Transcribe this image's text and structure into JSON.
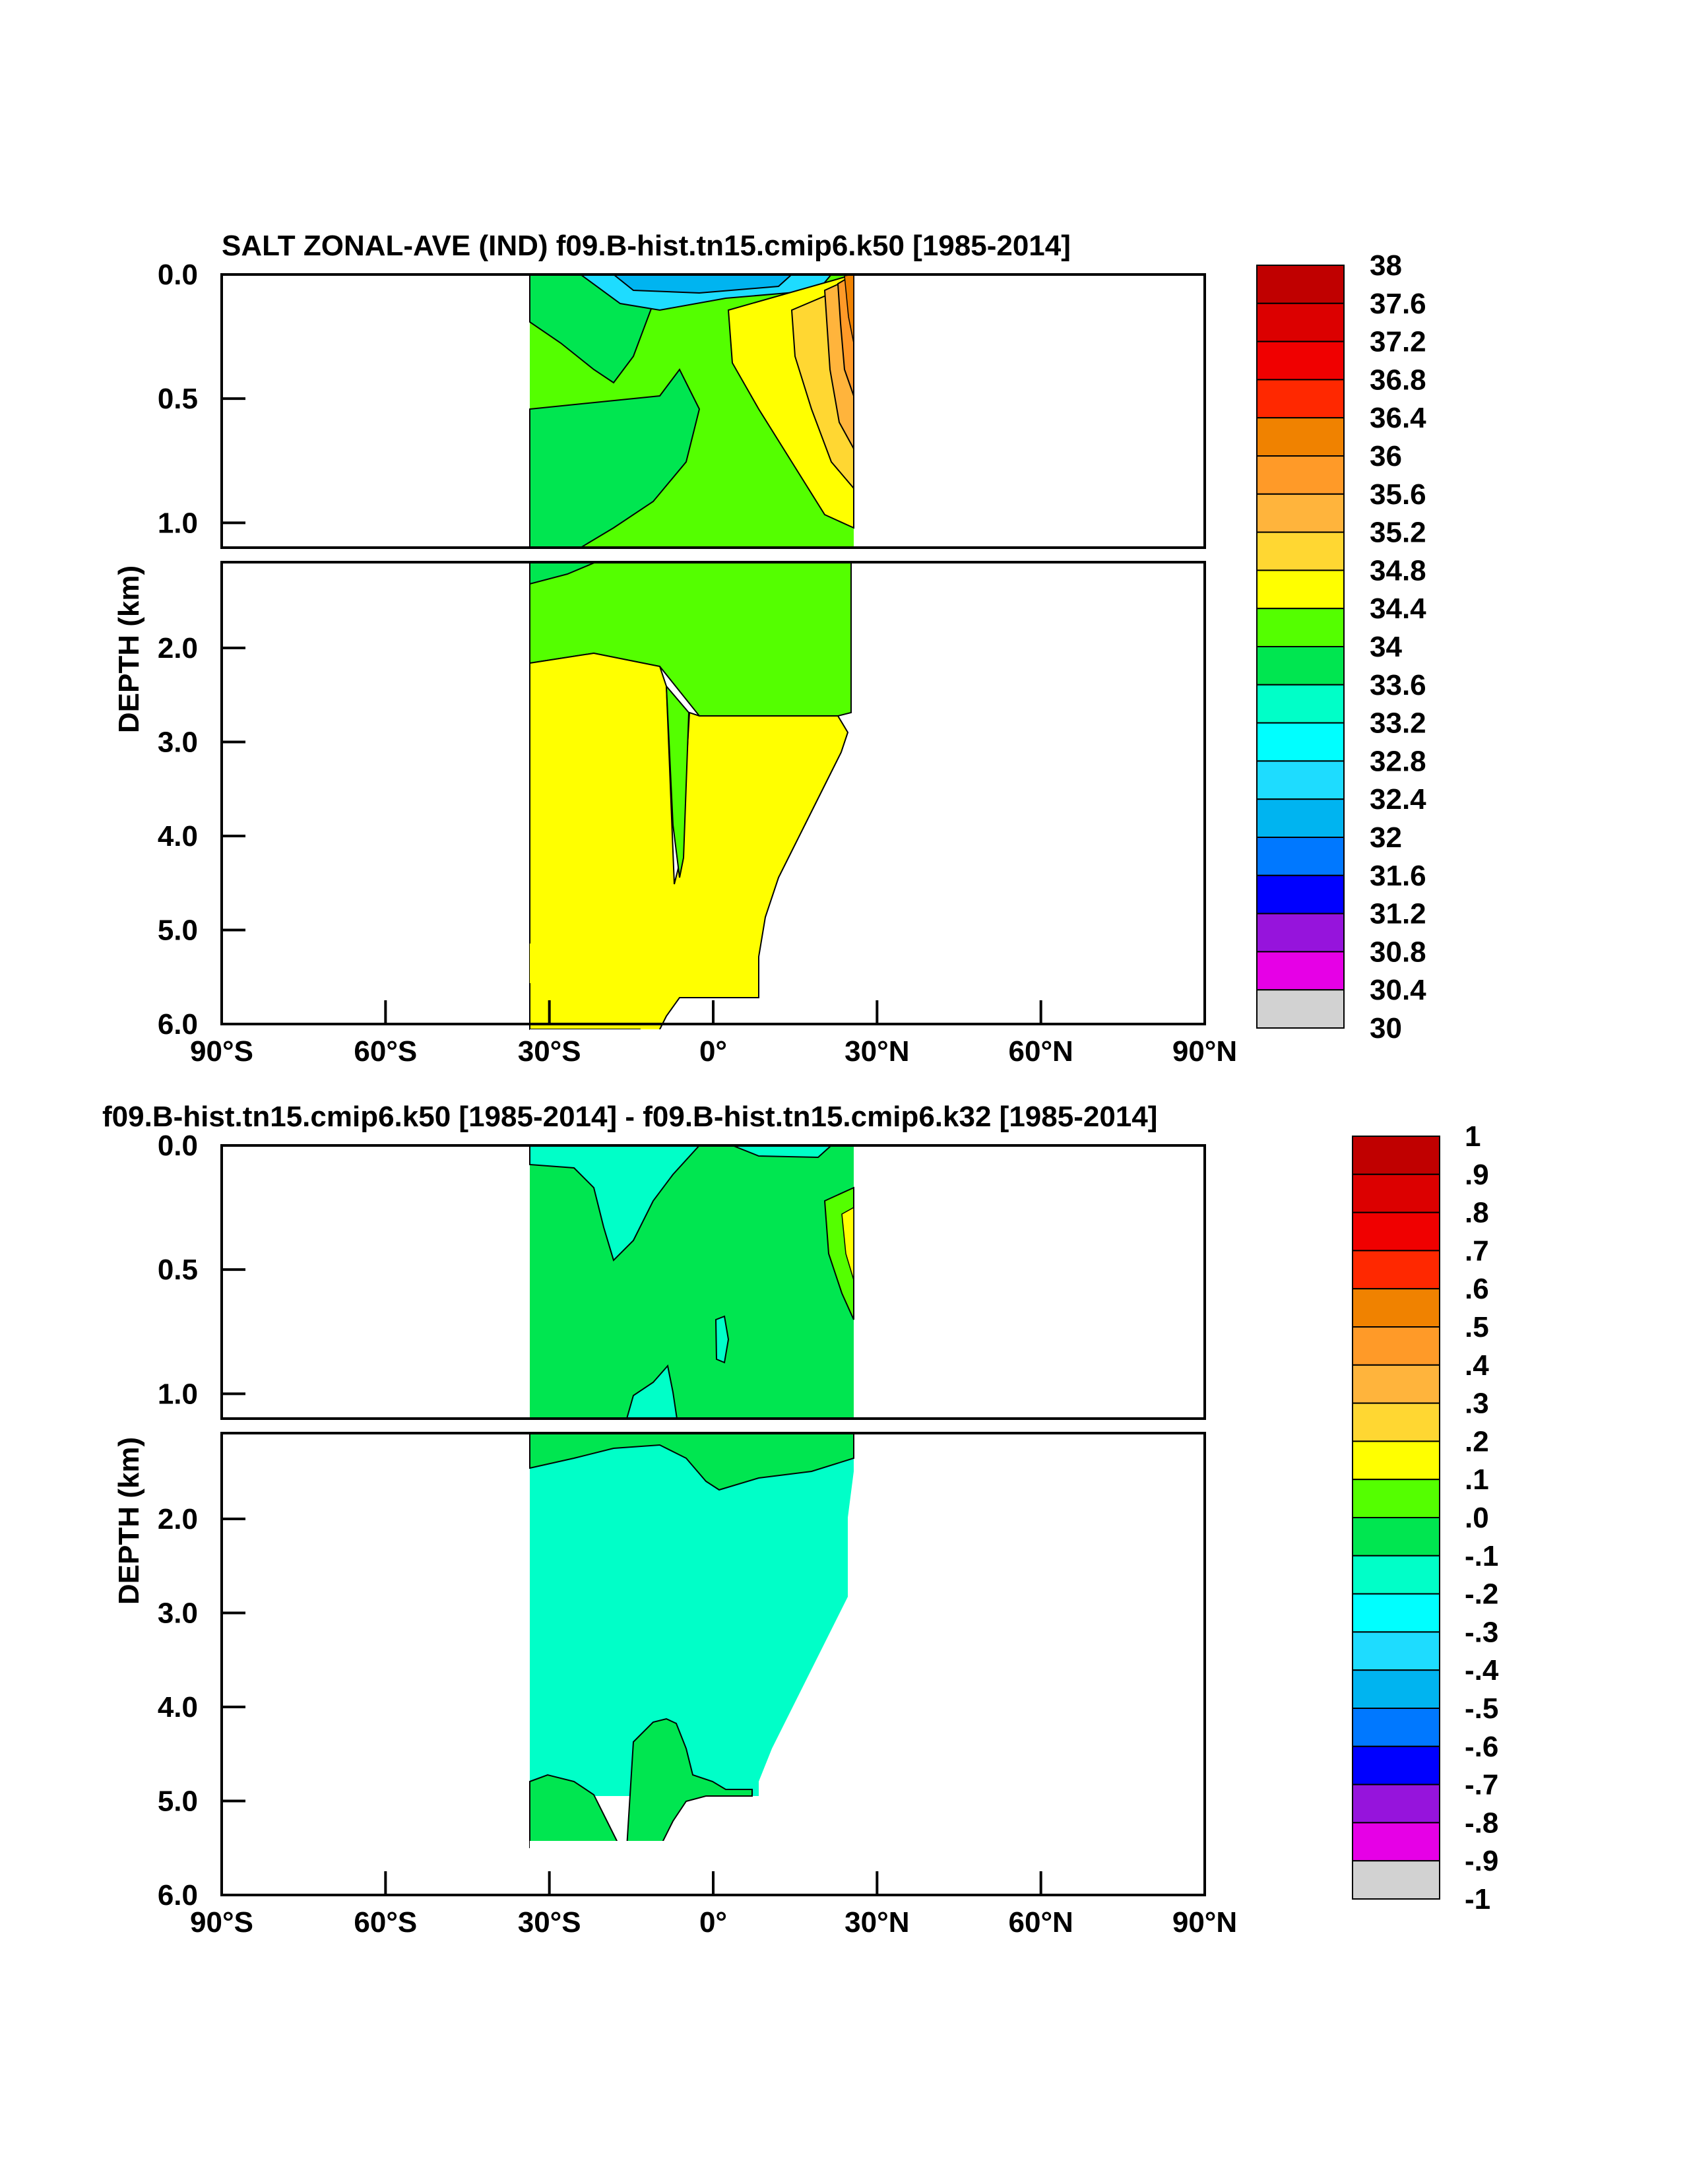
{
  "chart_data": [
    {
      "type": "heatmap",
      "title": "SALT ZONAL-AVE (IND) f09.B-hist.tn15.cmip6.k50 [1985-2014]",
      "ylabel": "DEPTH (km)",
      "xlabel": "",
      "x_ticks": [
        "90°S",
        "60°S",
        "30°S",
        "0°",
        "30°N",
        "60°N",
        "90°N"
      ],
      "y_ticks_upper": [
        "0.0",
        "0.5",
        "1.0"
      ],
      "y_ticks_lower": [
        "2.0",
        "3.0",
        "4.0",
        "5.0",
        "6.0"
      ],
      "xlim": [
        -90,
        90
      ],
      "ylim_km": [
        6.0,
        0.0
      ],
      "colorbar": {
        "labels": [
          "38",
          "37.6",
          "37.2",
          "36.8",
          "36.4",
          "36",
          "35.6",
          "35.2",
          "34.8",
          "34.4",
          "34",
          "33.6",
          "33.2",
          "32.8",
          "32.4",
          "32",
          "31.6",
          "31.2",
          "30.8",
          "30.4",
          "30"
        ],
        "colors": [
          "#c00000",
          "#dc0000",
          "#f00000",
          "#ff2800",
          "#f08200",
          "#ff9a28",
          "#ffb43c",
          "#ffd732",
          "#ffff00",
          "#54ff00",
          "#00e650",
          "#00ffc8",
          "#00ffff",
          "#1edcff",
          "#00b4f0",
          "#0078ff",
          "#0000ff",
          "#9614dc",
          "#e600e6",
          "#d2d2d2",
          "#6e6e6e"
        ]
      }
    },
    {
      "type": "heatmap",
      "title": "f09.B-hist.tn15.cmip6.k50 [1985-2014] - f09.B-hist.tn15.cmip6.k32 [1985-2014]",
      "ylabel": "DEPTH (km)",
      "xlabel": "",
      "x_ticks": [
        "90°S",
        "60°S",
        "30°S",
        "0°",
        "30°N",
        "60°N",
        "90°N"
      ],
      "y_ticks_upper": [
        "0.0",
        "0.5",
        "1.0"
      ],
      "y_ticks_lower": [
        "2.0",
        "3.0",
        "4.0",
        "5.0",
        "6.0"
      ],
      "xlim": [
        -90,
        90
      ],
      "ylim_km": [
        6.0,
        0.0
      ],
      "colorbar": {
        "labels": [
          "1",
          ".9",
          ".8",
          ".7",
          ".6",
          ".5",
          ".4",
          ".3",
          ".2",
          ".1",
          ".0",
          "-.1",
          "-.2",
          "-.3",
          "-.4",
          "-.5",
          "-.6",
          "-.7",
          "-.8",
          "-.9",
          "-1"
        ],
        "colors": [
          "#c00000",
          "#dc0000",
          "#f00000",
          "#ff2800",
          "#f08200",
          "#ff9a28",
          "#ffb43c",
          "#ffd732",
          "#ffff00",
          "#54ff00",
          "#00e650",
          "#00ffc8",
          "#00ffff",
          "#1edcff",
          "#00b4f0",
          "#0078ff",
          "#0000ff",
          "#9614dc",
          "#e600e6",
          "#d2d2d2",
          "#6e6e6e"
        ]
      }
    }
  ]
}
